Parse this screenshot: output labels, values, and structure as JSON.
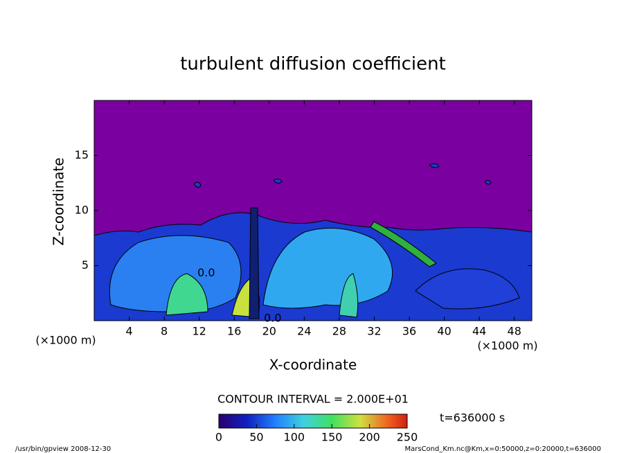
{
  "chart_data": {
    "type": "contour",
    "title": "turbulent diffusion coefficient",
    "x_label": "X-coordinate",
    "y_label": "Z-coordinate",
    "x_unit": "(×1000 m)",
    "y_unit": "(×1000 m)",
    "xlim": [
      0,
      50
    ],
    "ylim": [
      0,
      20
    ],
    "xticks": [
      4,
      8,
      12,
      16,
      20,
      24,
      28,
      32,
      36,
      40,
      44,
      48
    ],
    "yticks": [
      5,
      10,
      15
    ],
    "contour_labels": [
      {
        "x": 12.8,
        "y": 4.3,
        "label": "0.0"
      },
      {
        "x": 20.4,
        "y": 0.2,
        "label": "0.0"
      }
    ],
    "contour_interval": "CONTOUR INTERVAL = 2.000E+01",
    "time": "t=636000 s",
    "colorbar": {
      "lim": [
        0,
        250
      ],
      "ticks": [
        0,
        50,
        100,
        150,
        200,
        250
      ]
    },
    "program": "/usr/bin/gpview  2008-12-30",
    "source": "MarsCond_Km.nc@Km,x=0:50000,z=0:20000,t=636000"
  }
}
